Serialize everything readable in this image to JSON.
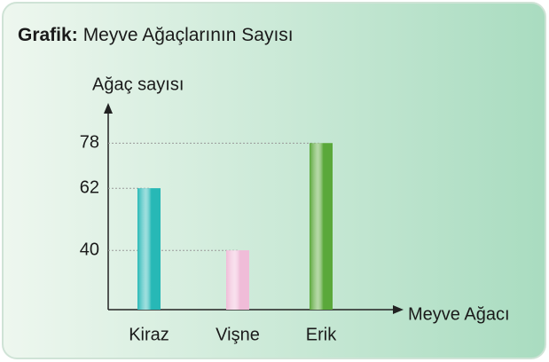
{
  "chart_data": {
    "type": "bar",
    "title_label": "Grafik:",
    "title": "Meyve Ağaçlarının Sayısı",
    "y_label": "Ağaç sayısı",
    "x_label": "Meyve Ağacı",
    "categories": [
      "Kiraz",
      "Vişne",
      "Erik"
    ],
    "values": [
      62,
      40,
      78
    ],
    "colors": [
      "#27b8b6",
      "#f0bcd8",
      "#5aa83a"
    ],
    "ylim": [
      19,
      91
    ],
    "yticks": [
      40,
      62,
      78
    ],
    "grid": true
  }
}
